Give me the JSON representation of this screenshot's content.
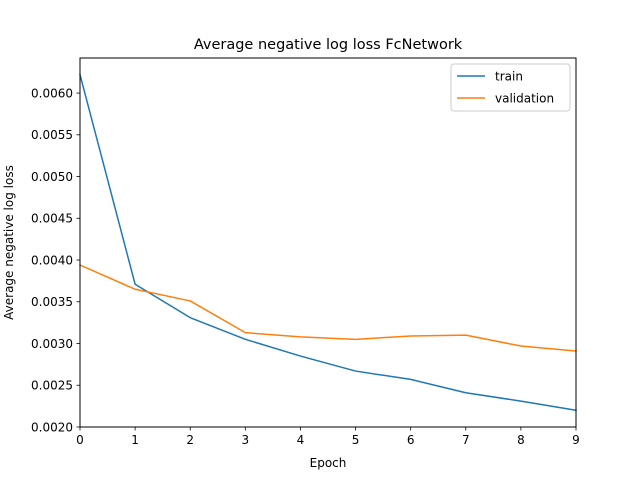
{
  "chart_data": {
    "type": "line",
    "title": "Average negative log loss FcNetwork",
    "xlabel": "Epoch",
    "ylabel": "Average negative log loss",
    "x": [
      0,
      1,
      2,
      3,
      4,
      5,
      6,
      7,
      8,
      9
    ],
    "xlim": [
      0,
      9
    ],
    "ylim": [
      0.002,
      0.00642
    ],
    "xticks": [
      "0",
      "1",
      "2",
      "3",
      "4",
      "5",
      "6",
      "7",
      "8",
      "9"
    ],
    "yticks": [
      "0.0020",
      "0.0025",
      "0.0030",
      "0.0035",
      "0.0040",
      "0.0045",
      "0.0050",
      "0.0055",
      "0.0060"
    ],
    "grid": false,
    "legend_position": "top-right",
    "series": [
      {
        "name": "train",
        "color": "#1f77b4",
        "values": [
          0.00622,
          0.00371,
          0.00331,
          0.00305,
          0.00285,
          0.00267,
          0.00257,
          0.00241,
          0.00231,
          0.0022
        ]
      },
      {
        "name": "validation",
        "color": "#ff7f0e",
        "values": [
          0.00394,
          0.00365,
          0.00351,
          0.00313,
          0.00308,
          0.00305,
          0.00309,
          0.0031,
          0.00297,
          0.00291
        ]
      }
    ]
  }
}
